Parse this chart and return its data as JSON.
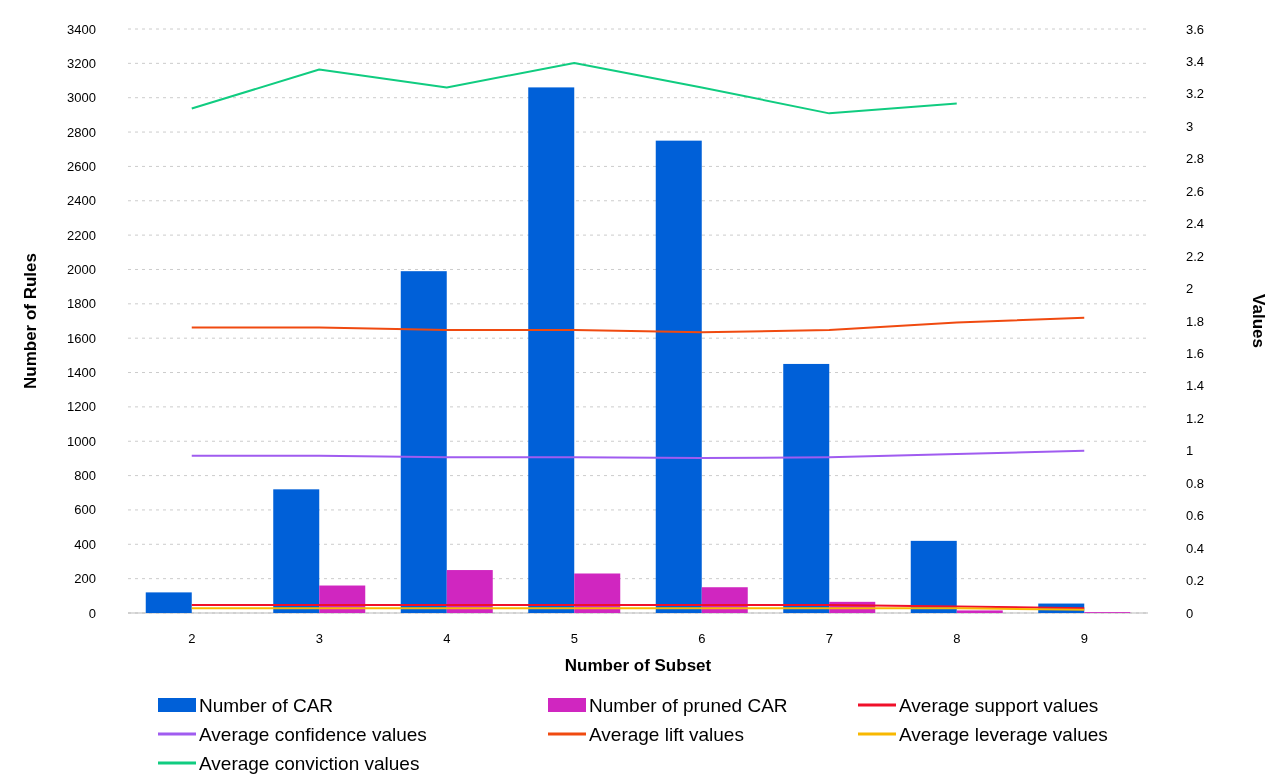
{
  "chart_data": {
    "type": "bar",
    "xlabel": "Number of Subset",
    "ylabel": "Number of Rules",
    "y2label": "Values",
    "categories": [
      "2",
      "3",
      "4",
      "5",
      "6",
      "7",
      "8",
      "9"
    ],
    "series": [
      {
        "name": "Number of CAR",
        "color": "#0060d8",
        "values": [
          120,
          720,
          1990,
          3060,
          2750,
          1450,
          420,
          55
        ]
      },
      {
        "name": "Number of pruned CAR",
        "color": "#d026c0",
        "values": [
          null,
          160,
          250,
          230,
          150,
          65,
          15,
          5
        ]
      },
      {
        "name": "Average support values",
        "type": "line",
        "axis": "y2",
        "color": "#f0102a",
        "values": [
          0.05,
          0.05,
          0.05,
          0.05,
          0.05,
          0.05,
          0.04,
          0.03
        ]
      },
      {
        "name": "Average confidence values",
        "type": "line",
        "axis": "y2",
        "color": "#a05cf0",
        "values": [
          0.97,
          0.97,
          0.96,
          0.96,
          0.955,
          0.96,
          0.98,
          1.0
        ]
      },
      {
        "name": "Average lift values",
        "type": "line",
        "axis": "y2",
        "color": "#f04a10",
        "values": [
          1.76,
          1.76,
          1.745,
          1.745,
          1.73,
          1.745,
          1.79,
          1.82
        ]
      },
      {
        "name": "Average leverage values",
        "type": "line",
        "axis": "y2",
        "color": "#f8b800",
        "values": [
          0.03,
          0.03,
          0.03,
          0.03,
          0.03,
          0.03,
          0.03,
          0.02
        ]
      },
      {
        "name": "Average conviction values",
        "type": "line",
        "axis": "y2",
        "color": "#10cc80",
        "values": [
          3.11,
          3.35,
          3.24,
          3.39,
          3.24,
          3.08,
          3.14,
          null
        ]
      }
    ],
    "ylim": [
      0,
      3400
    ],
    "yticks": [
      0,
      200,
      400,
      600,
      800,
      1000,
      1200,
      1400,
      1600,
      1800,
      2000,
      2200,
      2400,
      2600,
      2800,
      3000,
      3200,
      3400
    ],
    "y2lim": [
      0,
      3.6
    ],
    "y2ticks": [
      0,
      0.2,
      0.4,
      0.6,
      0.8,
      1,
      1.2,
      1.4,
      1.6,
      1.8,
      2,
      2.2,
      2.4,
      2.6,
      2.8,
      3,
      3.2,
      3.4,
      3.6
    ],
    "grid": "y",
    "legend": "bottom"
  }
}
